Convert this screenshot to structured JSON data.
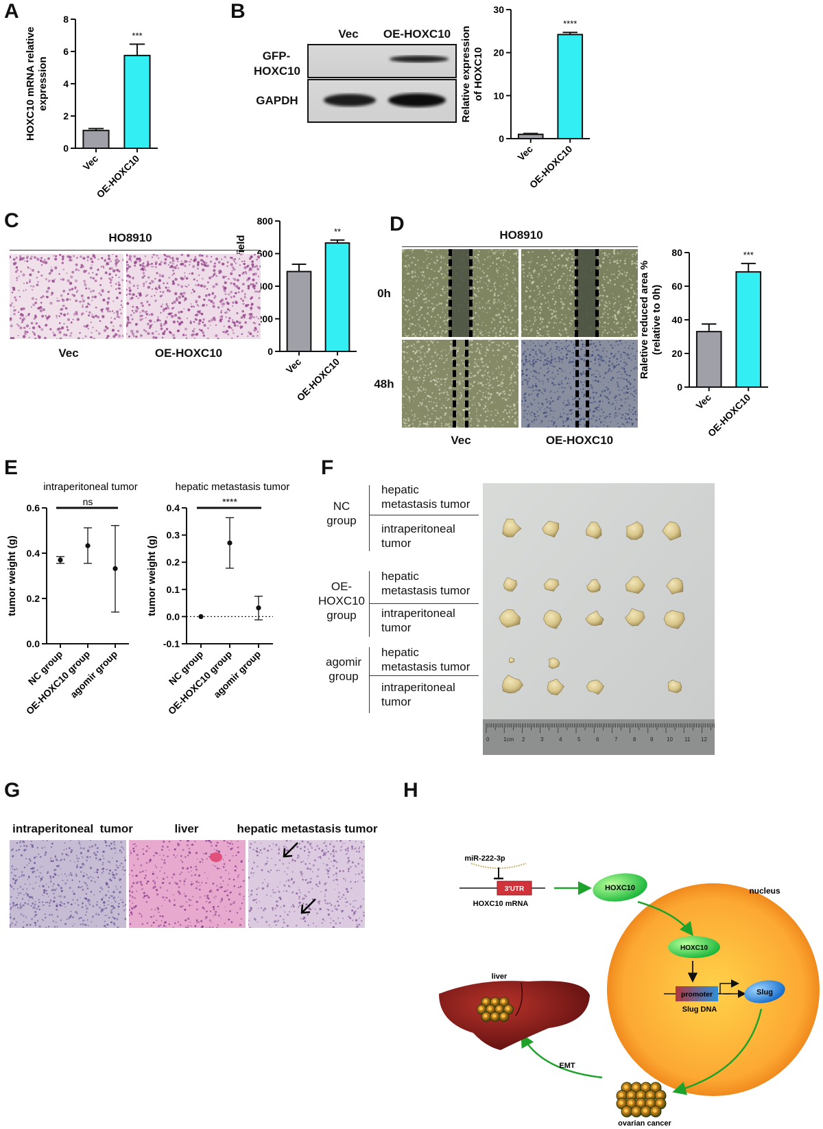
{
  "panels": {
    "a": {
      "letter": "A"
    },
    "b": {
      "letter": "B",
      "blot_cols": [
        "Vec",
        "OE-HOXC10"
      ],
      "blot_rows": [
        "GFP-\nHOXC10",
        "GAPDH"
      ],
      "blot_row1_line1": "GFP-",
      "blot_row1_line2": "HOXC10",
      "blot_row2": "GAPDH"
    },
    "c": {
      "letter": "C",
      "cell_line": "HO8910",
      "img_labels": [
        "Vec",
        "OE-HOXC10"
      ]
    },
    "d": {
      "letter": "D",
      "cell_line": "HO8910",
      "row_labels": [
        "0h",
        "48h"
      ],
      "col_labels": [
        "Vec",
        "OE-HOXC10"
      ]
    },
    "e": {
      "letter": "E"
    },
    "f": {
      "letter": "F",
      "groups": [
        {
          "name_lines": [
            "NC",
            "group"
          ],
          "rows": [
            [
              "hepatic",
              "metastasis tumor"
            ],
            [
              "intraperitoneal",
              "tumor"
            ]
          ]
        },
        {
          "name_lines": [
            "OE-",
            "HOXC10",
            "group"
          ],
          "rows": [
            [
              "hepatic",
              "metastasis tumor"
            ],
            [
              "intraperitoneal",
              "tumor"
            ]
          ]
        },
        {
          "name_lines": [
            "agomir",
            "group"
          ],
          "rows": [
            [
              "hepatic",
              "metastasis tumor"
            ],
            [
              "intraperitoneal",
              "tumor"
            ]
          ]
        }
      ],
      "ruler_labels": [
        "0",
        "1cm",
        "2",
        "3",
        "4",
        "5",
        "6",
        "7",
        "8",
        "9",
        "10",
        "11",
        "12"
      ]
    },
    "g": {
      "letter": "G",
      "labels": [
        "intraperitoneal  tumor",
        "liver",
        "hepatic metastasis tumor"
      ]
    },
    "h": {
      "letter": "H",
      "mirna": "miR-222-3p",
      "utr": "3'UTR",
      "mrna": "HOXC10 mRNA",
      "protein": "HOXC10",
      "protein_nuclear": "HOXC10",
      "nucleus": "nucleus",
      "promoter": "promoter",
      "slug": "Slug",
      "slug_dna": "Slug DNA",
      "liver": "liver",
      "emt": "EMT",
      "ovarian": "ovarian cancer"
    }
  },
  "chart_data": [
    {
      "id": "A",
      "type": "bar",
      "categories": [
        "Vec",
        "OE-HOXC10"
      ],
      "values": [
        1.1,
        5.75
      ],
      "errors": [
        0.12,
        0.7
      ],
      "ylabel": "HOXC10 mRNA relative\nexpression",
      "ylabel_lines": [
        "HOXC10 mRNA relative",
        "expression"
      ],
      "ylim": [
        0,
        8
      ],
      "yticks": [
        0,
        2,
        4,
        6,
        8
      ],
      "significance": "***",
      "colors": [
        "#a0a0a8",
        "#33eef2"
      ]
    },
    {
      "id": "B",
      "type": "bar",
      "categories": [
        "Vec",
        "OE-HOXC10"
      ],
      "values": [
        1.0,
        24.2
      ],
      "errors": [
        0.2,
        0.5
      ],
      "ylabel_lines": [
        "Relative expression",
        "of HOXC10"
      ],
      "ylim": [
        0,
        30
      ],
      "yticks": [
        0,
        10,
        20,
        30
      ],
      "significance": "****",
      "colors": [
        "#a0a0a8",
        "#33eef2"
      ]
    },
    {
      "id": "C",
      "type": "bar",
      "categories": [
        "Vec",
        "OE-HOXC10"
      ],
      "values": [
        490,
        665
      ],
      "errors": [
        45,
        18
      ],
      "ylabel_lines": [
        "Cell number per field"
      ],
      "ylim": [
        0,
        800
      ],
      "yticks": [
        0,
        200,
        400,
        600,
        800
      ],
      "significance": "**",
      "colors": [
        "#a0a0a8",
        "#33eef2"
      ]
    },
    {
      "id": "D",
      "type": "bar",
      "categories": [
        "Vec",
        "OE-HOXC10"
      ],
      "values": [
        33,
        68.5
      ],
      "errors": [
        4.5,
        5
      ],
      "ylabel_lines": [
        "Raletive reduced area %",
        "(relative to 0h)"
      ],
      "ylim": [
        0,
        80
      ],
      "yticks": [
        0,
        20,
        40,
        60,
        80
      ],
      "significance": "***",
      "colors": [
        "#a0a0a8",
        "#33eef2"
      ]
    },
    {
      "id": "E1",
      "type": "scatter",
      "title": "intraperitoneal tumor",
      "categories": [
        "NC group",
        "OE-HOXC10 group",
        "agomir group"
      ],
      "values": [
        0.37,
        0.433,
        0.332
      ],
      "err_low": [
        0.355,
        0.355,
        0.14
      ],
      "err_high": [
        0.385,
        0.512,
        0.522
      ],
      "ylabel_lines": [
        "tumor weight (g)"
      ],
      "ylim": [
        0,
        0.6
      ],
      "yticks": [
        0.0,
        0.2,
        0.4,
        0.6
      ],
      "significance": "ns"
    },
    {
      "id": "E2",
      "type": "scatter",
      "title": "hepatic metastasis tumor",
      "categories": [
        "NC group",
        "OE-HOXC10 group",
        "agomir group"
      ],
      "values": [
        0.0,
        0.271,
        0.032
      ],
      "err_low": [
        0.0,
        0.178,
        -0.012
      ],
      "err_high": [
        0.0,
        0.364,
        0.075
      ],
      "ylabel_lines": [
        "tumor weight (g)"
      ],
      "ylim": [
        -0.1,
        0.4
      ],
      "yticks": [
        -0.1,
        0.0,
        0.1,
        0.2,
        0.3,
        0.4
      ],
      "significance": "****"
    }
  ]
}
